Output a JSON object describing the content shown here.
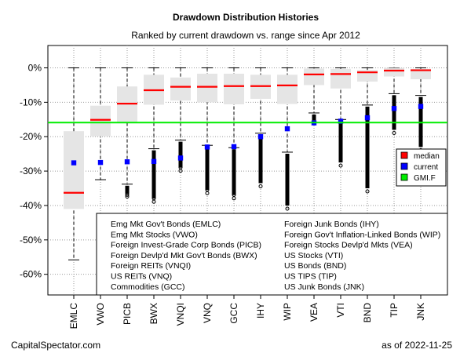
{
  "chart_data": {
    "type": "box",
    "title": "Drawdown Distribution Histories",
    "subtitle": "Ranked by current drawdown vs. range since Apr 2012",
    "xlabel": "",
    "ylabel": "",
    "ylim": [
      -0.66,
      0.065
    ],
    "y_ticks": [
      0,
      -0.1,
      -0.2,
      -0.3,
      -0.4,
      -0.5,
      -0.6
    ],
    "y_tick_labels": [
      "0%",
      "-10%",
      "-20%",
      "-30%",
      "-40%",
      "-50%",
      "-60%"
    ],
    "categories": [
      "EMLC",
      "VWO",
      "PICB",
      "BWX",
      "VNQI",
      "VNQ",
      "GCC",
      "IHY",
      "WIP",
      "VEA",
      "VTI",
      "BND",
      "TIP",
      "JNK"
    ],
    "grid": true,
    "gmif_line": -0.159,
    "series": [
      {
        "name": "median",
        "values": [
          -0.363,
          -0.151,
          -0.104,
          -0.065,
          -0.055,
          -0.055,
          -0.053,
          -0.053,
          -0.051,
          -0.019,
          -0.018,
          -0.013,
          -0.008,
          -0.007
        ]
      },
      {
        "name": "current",
        "values": [
          -0.276,
          -0.275,
          -0.273,
          -0.272,
          -0.262,
          -0.23,
          -0.229,
          -0.2,
          -0.177,
          -0.16,
          -0.155,
          -0.145,
          -0.118,
          -0.112
        ]
      }
    ],
    "boxes": [
      {
        "category": "EMLC",
        "q1": -0.41,
        "q3": -0.184,
        "whisker_low": -0.558,
        "whisker_high": 0.0,
        "outliers": []
      },
      {
        "category": "VWO",
        "q1": -0.199,
        "q3": -0.11,
        "whisker_low": -0.325,
        "whisker_high": 0.0,
        "outliers": []
      },
      {
        "category": "PICB",
        "q1": -0.16,
        "q3": -0.054,
        "whisker_low": -0.338,
        "whisker_high": 0.0,
        "outliers": [
          -0.345,
          -0.35,
          -0.355,
          -0.36,
          -0.365
        ]
      },
      {
        "category": "BWX",
        "q1": -0.107,
        "q3": -0.02,
        "whisker_low": -0.235,
        "whisker_high": 0.0,
        "outliers": [
          -0.245,
          -0.26,
          -0.28,
          -0.3,
          -0.32,
          -0.34,
          -0.36,
          -0.37,
          -0.38
        ]
      },
      {
        "category": "VNQI",
        "q1": -0.095,
        "q3": -0.028,
        "whisker_low": -0.21,
        "whisker_high": 0.0,
        "outliers": [
          -0.22,
          -0.24,
          -0.26,
          -0.28,
          -0.29
        ]
      },
      {
        "category": "VNQ",
        "q1": -0.1,
        "q3": -0.017,
        "whisker_low": -0.225,
        "whisker_high": 0.0,
        "outliers": [
          -0.235,
          -0.25,
          -0.27,
          -0.29,
          -0.33,
          -0.345,
          -0.355
        ]
      },
      {
        "category": "GCC",
        "q1": -0.106,
        "q3": -0.017,
        "whisker_low": -0.232,
        "whisker_high": 0.0,
        "outliers": [
          -0.245,
          -0.26,
          -0.28,
          -0.3,
          -0.32,
          -0.34,
          -0.36,
          -0.37
        ]
      },
      {
        "category": "IHY",
        "q1": -0.09,
        "q3": -0.02,
        "whisker_low": -0.19,
        "whisker_high": 0.0,
        "outliers": [
          -0.2,
          -0.22,
          -0.24,
          -0.26,
          -0.28,
          -0.3,
          -0.32,
          -0.335
        ]
      },
      {
        "category": "WIP",
        "q1": -0.105,
        "q3": -0.02,
        "whisker_low": -0.245,
        "whisker_high": 0.0,
        "outliers": [
          -0.26,
          -0.29,
          -0.32,
          -0.35,
          -0.38,
          -0.4
        ]
      },
      {
        "category": "VEA",
        "q1": -0.05,
        "q3": -0.002,
        "whisker_low": -0.131,
        "whisker_high": 0.0,
        "outliers": [
          -0.138,
          -0.145,
          -0.152
        ]
      },
      {
        "category": "VTI",
        "q1": -0.06,
        "q3": -0.003,
        "whisker_low": -0.15,
        "whisker_high": 0.0,
        "outliers": [
          -0.16,
          -0.18,
          -0.2,
          -0.22,
          -0.24,
          -0.26,
          -0.275
        ]
      },
      {
        "category": "BND",
        "q1": -0.04,
        "q3": -0.006,
        "whisker_low": -0.108,
        "whisker_high": 0.0,
        "outliers": [
          -0.115,
          -0.14,
          -0.17,
          -0.2,
          -0.23,
          -0.26,
          -0.29,
          -0.32,
          -0.35
        ]
      },
      {
        "category": "TIP",
        "q1": -0.025,
        "q3": 0.0,
        "whisker_low": -0.075,
        "whisker_high": 0.0,
        "outliers": [
          -0.085,
          -0.1,
          -0.12,
          -0.14,
          -0.16,
          -0.18
        ]
      },
      {
        "category": "JNK",
        "q1": -0.033,
        "q3": -0.003,
        "whisker_low": -0.08,
        "whisker_high": 0.0,
        "outliers": [
          -0.09,
          -0.11,
          -0.13,
          -0.15,
          -0.18,
          -0.21,
          -0.23
        ]
      }
    ],
    "legend": {
      "placement": "right",
      "entries": [
        {
          "label": "median",
          "color": "#ff0000"
        },
        {
          "label": "current",
          "color": "#0000ff"
        },
        {
          "label": "GMI.F",
          "color": "#00ee00"
        }
      ]
    },
    "notes_left": [
      "Emg Mkt Gov't Bonds (EMLC)",
      "Emg Mkt Stocks (VWO)",
      "Foreign Invest-Grade Corp Bonds (PICB)",
      "Foreign Devlp'd Mkt Gov't Bonds (BWX)",
      "Foreign REITs (VNQI)",
      "US REITs (VNQ)",
      "Commodities (GCC)"
    ],
    "notes_right": [
      "Foreign Junk Bonds (IHY)",
      "Foreign Gov't Inflation-Linked Bonds (WIP)",
      "Foreign Stocks Devlp'd Mkts (VEA)",
      "US Stocks (VTI)",
      "US Bonds (BND)",
      "US TIPS (TIP)",
      "US Junk Bonds (JNK)"
    ]
  },
  "footer": {
    "left": "CapitalSpectator.com",
    "right": "as of  2022-11-25"
  },
  "colors": {
    "box_fill": "#e5e5e5",
    "median": "#ff0000",
    "current": "#0000ff",
    "gmif": "#00ee00",
    "grid": "#999999"
  }
}
